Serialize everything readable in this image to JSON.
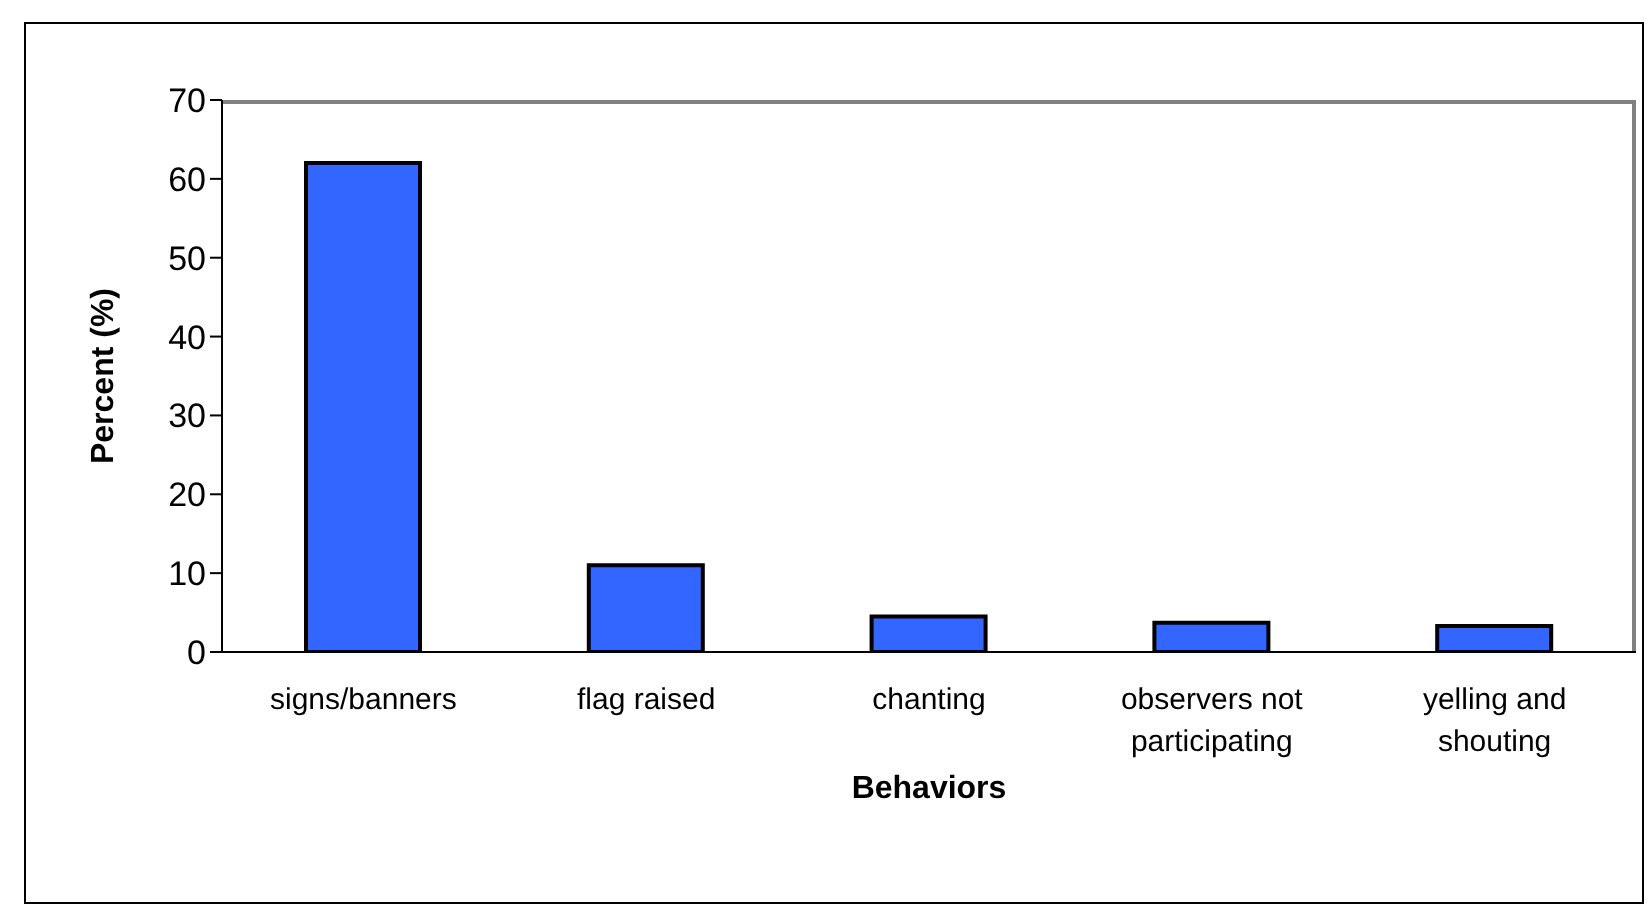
{
  "chart_data": {
    "type": "bar",
    "xlabel": "Behaviors",
    "ylabel": "Percent (%)",
    "categories": [
      "signs/banners",
      "flag raised",
      "chanting",
      "observers not participating",
      "yelling and shouting"
    ],
    "values": [
      62,
      11,
      4.5,
      3.7,
      3.3
    ],
    "color": "#3366ff",
    "ylim": [
      0,
      70
    ],
    "yticks": [
      0,
      10,
      20,
      30,
      40,
      50,
      60,
      70
    ],
    "grid": false
  }
}
